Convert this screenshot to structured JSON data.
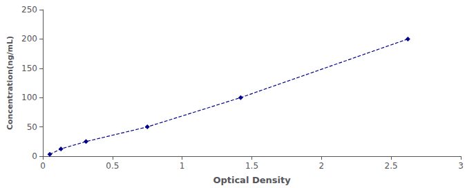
{
  "chart_data": {
    "type": "line",
    "x": [
      0.05,
      0.13,
      0.31,
      0.75,
      1.42,
      2.62
    ],
    "values": [
      3.125,
      12.5,
      25,
      50,
      100,
      200
    ],
    "color": "#00008B",
    "line_style": "dashed",
    "marker": "diamond",
    "xlabel": "Optical Density",
    "ylabel": "Concentration(ng/mL)",
    "xlim": [
      0,
      3
    ],
    "ylim": [
      0,
      250
    ],
    "xticks": [
      0,
      0.5,
      1,
      1.5,
      2,
      2.5,
      3
    ],
    "yticks": [
      0,
      50,
      100,
      150,
      200,
      250
    ],
    "grid": false
  }
}
